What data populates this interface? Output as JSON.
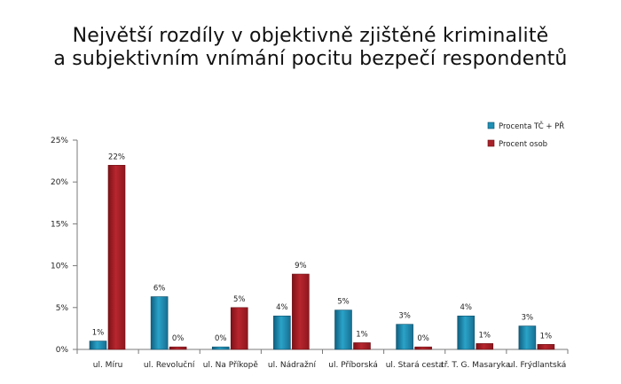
{
  "chart_data": {
    "type": "bar",
    "title_line1": "Největší rozdíly v objektivně zjištěné kriminalitě",
    "title_line2": "a subjektivním  vnímání pocitu bezpečí respondentů",
    "categories": [
      "ul. Míru",
      "ul. Revoluční",
      "ul. Na Příkopě",
      "ul. Nádražní",
      "ul. Příborská",
      "ul. Stará cesta",
      "tř. T. G. Masaryka",
      "ul. Frýdlantská"
    ],
    "series": [
      {
        "name": "Procenta TČ + PŘ",
        "values": [
          1,
          6.3,
          0.3,
          4,
          4.7,
          3,
          4,
          2.8
        ],
        "labels": [
          "1%",
          "6%",
          "0%",
          "4%",
          "5%",
          "3%",
          "4%",
          "3%"
        ],
        "color": "#1E8FB5"
      },
      {
        "name": "Procent osob",
        "values": [
          22,
          0.3,
          5,
          9,
          0.8,
          0.3,
          0.7,
          0.6
        ],
        "labels": [
          "22%",
          "0%",
          "5%",
          "9%",
          "1%",
          "0%",
          "1%",
          "1%"
        ],
        "color": "#A8222A"
      }
    ],
    "ylim": [
      0,
      25
    ],
    "yticks": [
      0,
      5,
      10,
      15,
      20,
      25
    ],
    "ytick_labels": [
      "0%",
      "5%",
      "10%",
      "15%",
      "20%",
      "25%"
    ],
    "grid": false,
    "legend": "top-right"
  }
}
